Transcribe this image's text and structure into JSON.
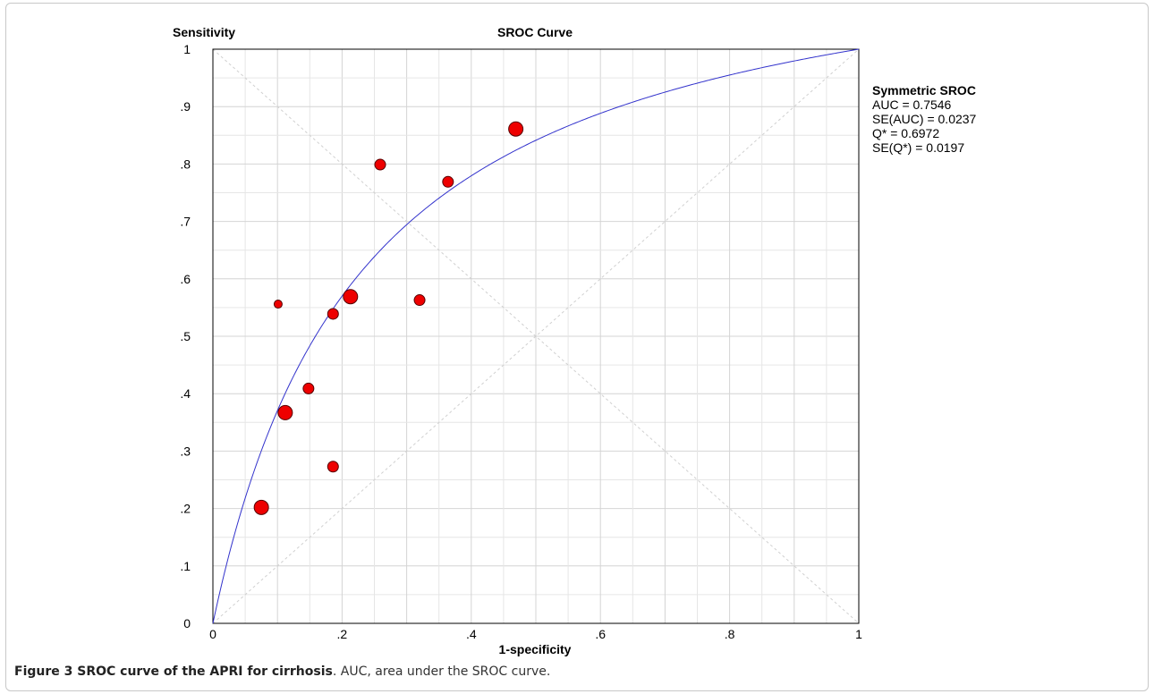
{
  "chart_data": {
    "type": "scatter",
    "title": "SROC Curve",
    "ylabel": "Sensitivity",
    "xlabel": "1-specificity",
    "xlim": [
      0,
      1
    ],
    "ylim": [
      0,
      1
    ],
    "x_ticks": [
      {
        "value": 0,
        "label": "0"
      },
      {
        "value": 0.2,
        "label": ".2"
      },
      {
        "value": 0.4,
        "label": ".4"
      },
      {
        "value": 0.6,
        "label": ".6"
      },
      {
        "value": 0.8,
        "label": ".8"
      },
      {
        "value": 1,
        "label": "1"
      }
    ],
    "y_ticks": [
      {
        "value": 0,
        "label": "0"
      },
      {
        "value": 0.1,
        "label": ".1"
      },
      {
        "value": 0.2,
        "label": ".2"
      },
      {
        "value": 0.3,
        "label": ".3"
      },
      {
        "value": 0.4,
        "label": ".4"
      },
      {
        "value": 0.5,
        "label": ".5"
      },
      {
        "value": 0.6,
        "label": ".6"
      },
      {
        "value": 0.7,
        "label": ".7"
      },
      {
        "value": 0.8,
        "label": ".8"
      },
      {
        "value": 0.9,
        "label": ".9"
      },
      {
        "value": 1,
        "label": "1"
      }
    ],
    "grid": true,
    "diagonals": true,
    "points": [
      {
        "x": 0.075,
        "y": 0.202,
        "weight": 3
      },
      {
        "x": 0.112,
        "y": 0.367,
        "weight": 3
      },
      {
        "x": 0.101,
        "y": 0.556,
        "weight": 1
      },
      {
        "x": 0.148,
        "y": 0.409,
        "weight": 2
      },
      {
        "x": 0.186,
        "y": 0.273,
        "weight": 2
      },
      {
        "x": 0.186,
        "y": 0.539,
        "weight": 2
      },
      {
        "x": 0.213,
        "y": 0.569,
        "weight": 3
      },
      {
        "x": 0.259,
        "y": 0.799,
        "weight": 2
      },
      {
        "x": 0.32,
        "y": 0.563,
        "weight": 2
      },
      {
        "x": 0.364,
        "y": 0.769,
        "weight": 2
      },
      {
        "x": 0.469,
        "y": 0.861,
        "weight": 3
      }
    ],
    "curve": {
      "name": "Symmetric SROC",
      "q_star": 0.6972,
      "color": "#3333cc"
    },
    "point_color": "#ee0000",
    "legend_position": "right",
    "legend": {
      "title": "Symmetric SROC",
      "lines": [
        "AUC = 0.7546",
        "SE(AUC) = 0.0237",
        "Q* = 0.6972",
        "SE(Q*) = 0.0197"
      ]
    }
  },
  "caption": {
    "label": "Figure 3 SROC curve of the APRI for cirrhosis",
    "text": ". AUC, area under the SROC curve."
  }
}
